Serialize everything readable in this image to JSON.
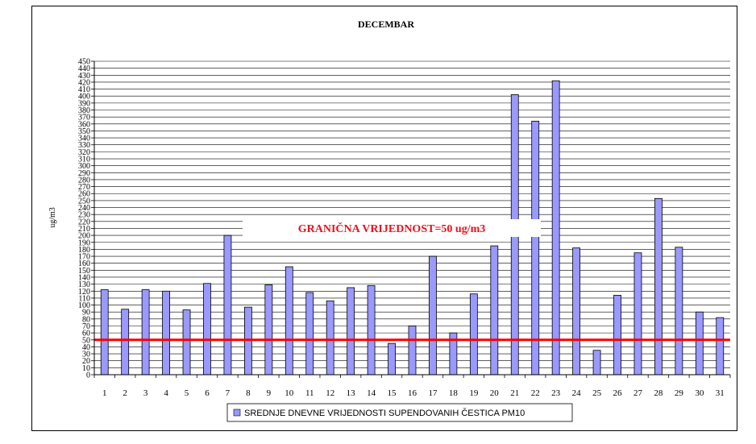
{
  "chart_data": {
    "type": "bar",
    "title": "DECEMBAR",
    "xlabel": "",
    "ylabel": "ug/m3",
    "ylim": [
      0,
      450
    ],
    "ytick_step": 10,
    "grid": "horizontal",
    "legend_position": "bottom",
    "categories": [
      "1",
      "2",
      "3",
      "4",
      "5",
      "6",
      "7",
      "8",
      "9",
      "10",
      "11",
      "12",
      "13",
      "14",
      "15",
      "16",
      "17",
      "18",
      "19",
      "20",
      "21",
      "22",
      "23",
      "24",
      "25",
      "26",
      "27",
      "28",
      "29",
      "30",
      "31"
    ],
    "series": [
      {
        "name": "SREDNJE DNEVNE VRIJEDNOSTI SUPENDOVANIH ČESTICA PM10",
        "color": "#9999ff",
        "values": [
          122,
          94,
          122,
          120,
          93,
          131,
          200,
          97,
          129,
          155,
          118,
          106,
          125,
          128,
          45,
          70,
          170,
          60,
          116,
          185,
          402,
          364,
          422,
          182,
          35,
          114,
          175,
          253,
          183,
          90,
          82
        ]
      }
    ],
    "limit_line": {
      "value": 50,
      "color": "#ff0000",
      "label": "GRANIČNA VRIJEDNOST=50 ug/m3"
    }
  }
}
